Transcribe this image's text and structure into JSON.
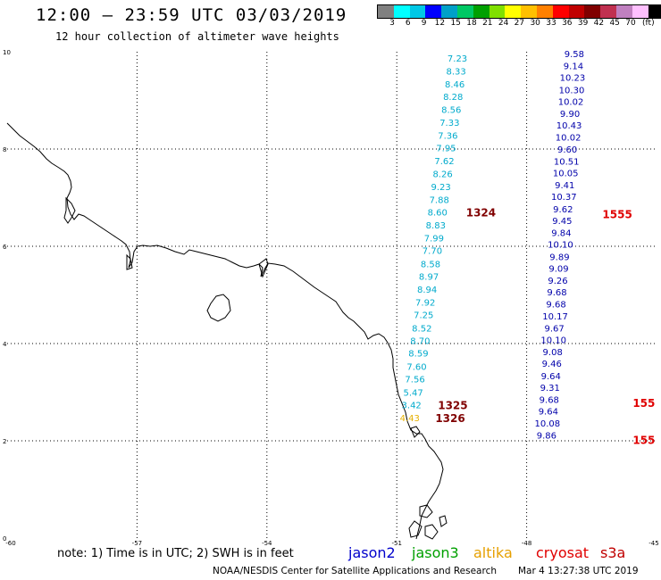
{
  "title": "12:00 – 23:59 UTC 03/03/2019",
  "subtitle": "12 hour collection of altimeter wave heights",
  "legend": {
    "unit": "(ft)",
    "colors": [
      "#808080",
      "#00ffff",
      "#00c8e6",
      "#0000ff",
      "#00a0c8",
      "#00c864",
      "#00a000",
      "#80e000",
      "#ffff00",
      "#ffc000",
      "#ff8000",
      "#ff0000",
      "#c00000",
      "#800000",
      "#c03050",
      "#c080c0",
      "#ffc0ff",
      "#000000"
    ],
    "labels": [
      "3",
      "6",
      "9",
      "12",
      "15",
      "18",
      "21",
      "24",
      "27",
      "30",
      "33",
      "36",
      "39",
      "42",
      "45",
      "70"
    ]
  },
  "axes": {
    "x_ticks": [
      "-60",
      "-57",
      "-54",
      "-51",
      "-48",
      "-45"
    ],
    "y_ticks": [
      "0",
      "2",
      "4",
      "6",
      "8",
      "10"
    ],
    "xlim": [
      -60,
      -45
    ],
    "ylim": [
      0,
      10
    ]
  },
  "tracks": [
    {
      "color": "#00aacc",
      "points": [
        {
          "lon": -49.6,
          "lat": 9.8,
          "v": "7.23"
        },
        {
          "lon": -49.63,
          "lat": 9.53,
          "v": "8.33"
        },
        {
          "lon": -49.66,
          "lat": 9.27,
          "v": "8.46"
        },
        {
          "lon": -49.7,
          "lat": 9.01,
          "v": "8.28"
        },
        {
          "lon": -49.74,
          "lat": 8.74,
          "v": "8.56"
        },
        {
          "lon": -49.78,
          "lat": 8.48,
          "v": "7.33"
        },
        {
          "lon": -49.82,
          "lat": 8.21,
          "v": "7.36"
        },
        {
          "lon": -49.86,
          "lat": 7.95,
          "v": "7.95"
        },
        {
          "lon": -49.9,
          "lat": 7.69,
          "v": "7.62"
        },
        {
          "lon": -49.94,
          "lat": 7.42,
          "v": "8.26"
        },
        {
          "lon": -49.98,
          "lat": 7.16,
          "v": "9.23"
        },
        {
          "lon": -50.02,
          "lat": 6.89,
          "v": "7.88"
        },
        {
          "lon": -50.06,
          "lat": 6.63,
          "v": "8.60"
        },
        {
          "lon": -50.1,
          "lat": 6.37,
          "v": "8.83"
        },
        {
          "lon": -50.14,
          "lat": 6.1,
          "v": "7.99"
        },
        {
          "lon": -50.18,
          "lat": 5.84,
          "v": "7.70"
        },
        {
          "lon": -50.22,
          "lat": 5.57,
          "v": "8.58"
        },
        {
          "lon": -50.26,
          "lat": 5.31,
          "v": "8.97"
        },
        {
          "lon": -50.3,
          "lat": 5.05,
          "v": "8.94"
        },
        {
          "lon": -50.34,
          "lat": 4.78,
          "v": "7.92"
        },
        {
          "lon": -50.38,
          "lat": 4.52,
          "v": "7.25"
        },
        {
          "lon": -50.42,
          "lat": 4.25,
          "v": "8.52"
        },
        {
          "lon": -50.46,
          "lat": 3.99,
          "v": "8.70"
        },
        {
          "lon": -50.5,
          "lat": 3.73,
          "v": "8.59"
        },
        {
          "lon": -50.54,
          "lat": 3.46,
          "v": "7.60"
        },
        {
          "lon": -50.58,
          "lat": 3.2,
          "v": "7.56"
        },
        {
          "lon": -50.62,
          "lat": 2.93,
          "v": "5.47"
        },
        {
          "lon": -50.66,
          "lat": 2.67,
          "v": "3.42"
        }
      ]
    },
    {
      "color": "#e6b000",
      "points": [
        {
          "lon": -50.7,
          "lat": 2.4,
          "v": "4.43"
        }
      ]
    },
    {
      "color": "#0000aa",
      "points": [
        {
          "lon": -46.9,
          "lat": 9.89,
          "v": "9.58"
        },
        {
          "lon": -46.92,
          "lat": 9.64,
          "v": "9.14"
        },
        {
          "lon": -46.94,
          "lat": 9.4,
          "v": "10.23"
        },
        {
          "lon": -46.96,
          "lat": 9.15,
          "v": "10.30"
        },
        {
          "lon": -46.98,
          "lat": 8.91,
          "v": "10.02"
        },
        {
          "lon": -47.0,
          "lat": 8.66,
          "v": "9.90"
        },
        {
          "lon": -47.02,
          "lat": 8.42,
          "v": "10.43"
        },
        {
          "lon": -47.04,
          "lat": 8.17,
          "v": "10.02"
        },
        {
          "lon": -47.06,
          "lat": 7.93,
          "v": "9.60"
        },
        {
          "lon": -47.08,
          "lat": 7.68,
          "v": "10.51"
        },
        {
          "lon": -47.1,
          "lat": 7.44,
          "v": "10.05"
        },
        {
          "lon": -47.12,
          "lat": 7.19,
          "v": "9.41"
        },
        {
          "lon": -47.14,
          "lat": 6.95,
          "v": "10.37"
        },
        {
          "lon": -47.16,
          "lat": 6.7,
          "v": "9.62"
        },
        {
          "lon": -47.18,
          "lat": 6.46,
          "v": "9.45"
        },
        {
          "lon": -47.2,
          "lat": 6.21,
          "v": "9.84"
        },
        {
          "lon": -47.22,
          "lat": 5.97,
          "v": "10.10"
        },
        {
          "lon": -47.24,
          "lat": 5.72,
          "v": "9.89"
        },
        {
          "lon": -47.26,
          "lat": 5.48,
          "v": "9.09"
        },
        {
          "lon": -47.28,
          "lat": 5.23,
          "v": "9.26"
        },
        {
          "lon": -47.3,
          "lat": 4.99,
          "v": "9.68"
        },
        {
          "lon": -47.32,
          "lat": 4.74,
          "v": "9.68"
        },
        {
          "lon": -47.34,
          "lat": 4.5,
          "v": "10.17"
        },
        {
          "lon": -47.36,
          "lat": 4.25,
          "v": "9.67"
        },
        {
          "lon": -47.38,
          "lat": 4.01,
          "v": "10.10"
        },
        {
          "lon": -47.4,
          "lat": 3.76,
          "v": "9.08"
        },
        {
          "lon": -47.42,
          "lat": 3.52,
          "v": "9.46"
        },
        {
          "lon": -47.44,
          "lat": 3.27,
          "v": "9.64"
        },
        {
          "lon": -47.46,
          "lat": 3.03,
          "v": "9.31"
        },
        {
          "lon": -47.48,
          "lat": 2.78,
          "v": "9.68"
        },
        {
          "lon": -47.5,
          "lat": 2.54,
          "v": "9.64"
        },
        {
          "lon": -47.52,
          "lat": 2.29,
          "v": "10.08"
        },
        {
          "lon": -47.54,
          "lat": 2.05,
          "v": "9.86"
        }
      ]
    }
  ],
  "pass_ids": [
    {
      "label": "1324",
      "color": "#800000",
      "lon": -49.4,
      "lat": 6.63
    },
    {
      "label": "1325",
      "color": "#800000",
      "lon": -50.05,
      "lat": 2.67
    },
    {
      "label": "1326",
      "color": "#800000",
      "lon": -50.11,
      "lat": 2.4
    },
    {
      "label": "1555",
      "color": "#e00000",
      "lon": -46.25,
      "lat": 6.6
    },
    {
      "label": "155",
      "color": "#e00000",
      "lon": -45.55,
      "lat": 2.72
    },
    {
      "label": "155",
      "color": "#e00000",
      "lon": -45.55,
      "lat": 1.95
    }
  ],
  "footer": {
    "note": "note:  1) Time is in UTC;  2) SWH is in feet",
    "satellites": [
      {
        "name": "jason2",
        "color": "#0000cc"
      },
      {
        "name": "jason3",
        "color": "#00a000"
      },
      {
        "name": "altika",
        "color": "#e6a000"
      },
      {
        "name": "cryosat",
        "color": "#e00000"
      },
      {
        "name": "s3a",
        "color": "#c00000"
      }
    ],
    "credit": "NOAA/NESDIS Center for Satellite Applications and Research",
    "timestamp": "Mar  4 13:27:38 UTC 2019"
  }
}
